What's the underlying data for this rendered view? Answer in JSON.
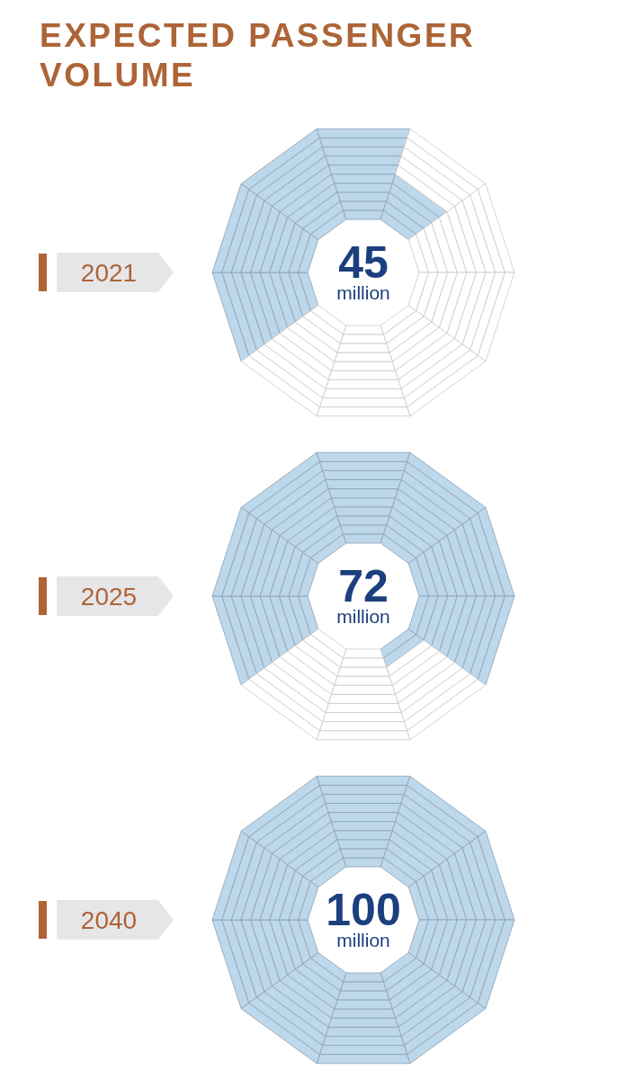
{
  "chart_data": {
    "type": "other",
    "title": "EXPECTED PASSENGER VOLUME",
    "categories": [
      "2021",
      "2025",
      "2040"
    ],
    "values": [
      45,
      72,
      100
    ],
    "ylabel": "million",
    "color": "#bdd7eb",
    "data_labels": true
  }
}
